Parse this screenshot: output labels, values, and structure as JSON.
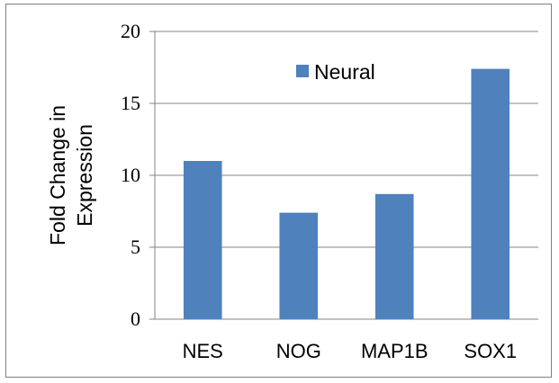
{
  "chart_data": {
    "type": "bar",
    "categories": [
      "NES",
      "NOG",
      "MAP1B",
      "SOX1"
    ],
    "series": [
      {
        "name": "Neural",
        "values": [
          11.0,
          7.4,
          8.7,
          17.4
        ]
      }
    ],
    "title": "",
    "xlabel": "",
    "ylabel_lines": [
      "Fold Change in",
      "Expression"
    ],
    "ylim": [
      0,
      20
    ],
    "yticks": [
      0,
      5,
      10,
      15,
      20
    ],
    "grid": true,
    "legend_position": "top-center",
    "colors": {
      "bar": "#4f81bd",
      "grid": "#858585",
      "axis": "#858585"
    }
  }
}
